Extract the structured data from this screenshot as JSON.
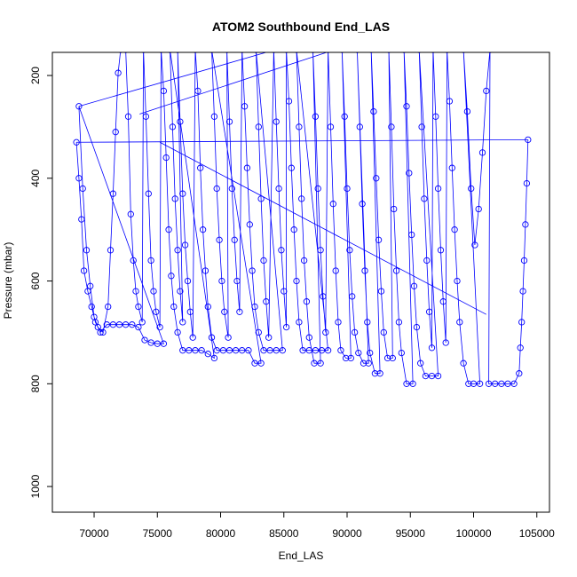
{
  "chart_data": {
    "type": "line",
    "title": "ATOM2 Southbound End_LAS",
    "xlabel": "End_LAS",
    "ylabel": "Pressure (mbar)",
    "xlim": [
      66700,
      106000
    ],
    "ylim": [
      1050,
      155
    ],
    "y_reversed": true,
    "x_ticks": [
      70000,
      75000,
      80000,
      85000,
      90000,
      95000,
      100000,
      105000
    ],
    "x_tick_labels": [
      "70000",
      "75000",
      "80000",
      "85000",
      "90000",
      "95000",
      "100000",
      "105000"
    ],
    "y_ticks": [
      200,
      400,
      600,
      800,
      1000
    ],
    "y_tick_labels": [
      "200",
      "400",
      "600",
      "800",
      "1000"
    ],
    "series_color": "#0000ff",
    "marker": "open-circle",
    "grid": false,
    "legend": "none",
    "series": [
      {
        "points": [
          [
            68600,
            330
          ],
          [
            68800,
            400
          ],
          [
            69000,
            480
          ],
          [
            69200,
            580
          ],
          [
            69500,
            620
          ],
          [
            69800,
            650
          ],
          [
            70100,
            680
          ],
          [
            70500,
            700
          ],
          [
            71000,
            685
          ],
          [
            71500,
            685
          ],
          [
            72000,
            685
          ],
          [
            72500,
            685
          ],
          [
            73000,
            685
          ],
          [
            73500,
            690
          ],
          [
            74000,
            715
          ],
          [
            74500,
            720
          ],
          [
            75000,
            722
          ],
          [
            75500,
            722
          ],
          [
            68800,
            260
          ],
          [
            69100,
            420
          ],
          [
            69400,
            540
          ],
          [
            69700,
            610
          ],
          [
            70000,
            670
          ],
          [
            70300,
            690
          ],
          [
            70700,
            700
          ],
          [
            71100,
            650
          ],
          [
            71300,
            540
          ],
          [
            71500,
            430
          ],
          [
            71700,
            310
          ],
          [
            71900,
            195
          ],
          [
            72100,
            150
          ],
          [
            72500,
            150
          ],
          [
            72700,
            280
          ],
          [
            72900,
            470
          ],
          [
            73100,
            560
          ],
          [
            73300,
            620
          ],
          [
            73500,
            650
          ],
          [
            73800,
            680
          ],
          [
            73900,
            150
          ],
          [
            74100,
            280
          ],
          [
            74300,
            430
          ],
          [
            74500,
            560
          ],
          [
            74700,
            620
          ],
          [
            74900,
            660
          ],
          [
            75200,
            690
          ],
          [
            75300,
            150
          ],
          [
            75500,
            230
          ],
          [
            75700,
            360
          ],
          [
            75900,
            500
          ],
          [
            76100,
            590
          ],
          [
            76300,
            650
          ],
          [
            76600,
            700
          ],
          [
            77000,
            735
          ],
          [
            77500,
            735
          ],
          [
            78000,
            735
          ],
          [
            78500,
            735
          ],
          [
            79000,
            742
          ],
          [
            79500,
            750
          ],
          [
            76000,
            150
          ],
          [
            76200,
            300
          ],
          [
            76400,
            440
          ],
          [
            76600,
            540
          ],
          [
            76800,
            620
          ],
          [
            77000,
            680
          ],
          [
            76600,
            150
          ],
          [
            76800,
            290
          ],
          [
            77000,
            430
          ],
          [
            77200,
            530
          ],
          [
            77400,
            600
          ],
          [
            77600,
            660
          ],
          [
            77800,
            710
          ],
          [
            78000,
            150
          ],
          [
            78200,
            230
          ],
          [
            78400,
            380
          ],
          [
            78600,
            500
          ],
          [
            78800,
            580
          ],
          [
            79000,
            650
          ],
          [
            79300,
            710
          ],
          [
            79700,
            735
          ],
          [
            80200,
            735
          ],
          [
            80700,
            735
          ],
          [
            81200,
            735
          ],
          [
            81700,
            735
          ],
          [
            82200,
            735
          ],
          [
            82700,
            760
          ],
          [
            83200,
            760
          ],
          [
            79300,
            150
          ],
          [
            79500,
            280
          ],
          [
            79700,
            420
          ],
          [
            79900,
            520
          ],
          [
            80100,
            600
          ],
          [
            80300,
            660
          ],
          [
            80600,
            710
          ],
          [
            80500,
            150
          ],
          [
            80700,
            290
          ],
          [
            80900,
            420
          ],
          [
            81100,
            520
          ],
          [
            81300,
            600
          ],
          [
            81500,
            660
          ],
          [
            81700,
            150
          ],
          [
            81900,
            260
          ],
          [
            82100,
            380
          ],
          [
            82300,
            490
          ],
          [
            82500,
            580
          ],
          [
            82700,
            650
          ],
          [
            83000,
            700
          ],
          [
            83400,
            735
          ],
          [
            83900,
            735
          ],
          [
            84400,
            735
          ],
          [
            84900,
            735
          ],
          [
            82800,
            150
          ],
          [
            83000,
            300
          ],
          [
            83200,
            440
          ],
          [
            83400,
            560
          ],
          [
            83600,
            640
          ],
          [
            83800,
            710
          ],
          [
            84200,
            150
          ],
          [
            84400,
            290
          ],
          [
            84600,
            420
          ],
          [
            84800,
            540
          ],
          [
            85000,
            620
          ],
          [
            85200,
            690
          ],
          [
            85200,
            150
          ],
          [
            85400,
            250
          ],
          [
            85600,
            380
          ],
          [
            85800,
            500
          ],
          [
            86000,
            600
          ],
          [
            86200,
            680
          ],
          [
            86500,
            735
          ],
          [
            87000,
            735
          ],
          [
            87500,
            735
          ],
          [
            88000,
            735
          ],
          [
            88500,
            735
          ],
          [
            86000,
            150
          ],
          [
            86200,
            300
          ],
          [
            86400,
            440
          ],
          [
            86600,
            560
          ],
          [
            86800,
            640
          ],
          [
            87000,
            710
          ],
          [
            87400,
            760
          ],
          [
            87900,
            760
          ],
          [
            87300,
            150
          ],
          [
            87500,
            280
          ],
          [
            87700,
            420
          ],
          [
            87900,
            540
          ],
          [
            88100,
            630
          ],
          [
            88300,
            700
          ],
          [
            88500,
            150
          ],
          [
            88700,
            300
          ],
          [
            88900,
            450
          ],
          [
            89100,
            580
          ],
          [
            89300,
            680
          ],
          [
            89500,
            735
          ],
          [
            89900,
            750
          ],
          [
            90300,
            750
          ],
          [
            89600,
            150
          ],
          [
            89800,
            280
          ],
          [
            90000,
            420
          ],
          [
            90200,
            540
          ],
          [
            90400,
            630
          ],
          [
            90600,
            700
          ],
          [
            90900,
            740
          ],
          [
            91300,
            760
          ],
          [
            91700,
            760
          ],
          [
            90800,
            150
          ],
          [
            91000,
            300
          ],
          [
            91200,
            450
          ],
          [
            91400,
            580
          ],
          [
            91600,
            680
          ],
          [
            91800,
            740
          ],
          [
            92200,
            780
          ],
          [
            92600,
            780
          ],
          [
            91900,
            150
          ],
          [
            92100,
            270
          ],
          [
            92300,
            400
          ],
          [
            92500,
            520
          ],
          [
            92700,
            620
          ],
          [
            92900,
            700
          ],
          [
            93200,
            750
          ],
          [
            93600,
            750
          ],
          [
            93300,
            150
          ],
          [
            93500,
            300
          ],
          [
            93700,
            460
          ],
          [
            93900,
            580
          ],
          [
            94100,
            680
          ],
          [
            94300,
            740
          ],
          [
            94700,
            800
          ],
          [
            95200,
            800
          ],
          [
            94500,
            150
          ],
          [
            94700,
            260
          ],
          [
            94900,
            390
          ],
          [
            95100,
            510
          ],
          [
            95300,
            610
          ],
          [
            95500,
            690
          ],
          [
            95800,
            760
          ],
          [
            96200,
            785
          ],
          [
            96700,
            785
          ],
          [
            97200,
            785
          ],
          [
            95700,
            150
          ],
          [
            95900,
            300
          ],
          [
            96100,
            440
          ],
          [
            96300,
            560
          ],
          [
            96500,
            660
          ],
          [
            96700,
            730
          ],
          [
            96800,
            150
          ],
          [
            97000,
            280
          ],
          [
            97200,
            420
          ],
          [
            97400,
            540
          ],
          [
            97600,
            640
          ],
          [
            97800,
            720
          ],
          [
            97900,
            150
          ],
          [
            98100,
            250
          ],
          [
            98300,
            380
          ],
          [
            98500,
            500
          ],
          [
            98700,
            600
          ],
          [
            98900,
            680
          ],
          [
            99200,
            760
          ],
          [
            99600,
            800
          ],
          [
            100000,
            800
          ],
          [
            100500,
            800
          ],
          [
            99200,
            150
          ],
          [
            99500,
            270
          ],
          [
            99800,
            420
          ],
          [
            100100,
            530
          ],
          [
            100400,
            460
          ],
          [
            100700,
            350
          ],
          [
            101000,
            230
          ],
          [
            101300,
            150
          ],
          [
            101200,
            800
          ],
          [
            101700,
            800
          ],
          [
            102200,
            800
          ],
          [
            102700,
            800
          ],
          [
            103200,
            800
          ],
          [
            103600,
            780
          ],
          [
            103700,
            730
          ],
          [
            103800,
            680
          ],
          [
            103900,
            620
          ],
          [
            104000,
            560
          ],
          [
            104100,
            490
          ],
          [
            104200,
            410
          ],
          [
            104300,
            325
          ]
        ]
      }
    ],
    "connectors": [
      [
        [
          68600,
          330
        ],
        [
          104300,
          325
        ]
      ],
      [
        [
          68800,
          260
        ],
        [
          84300,
          150
        ]
      ],
      [
        [
          73600,
          275
        ],
        [
          89000,
          150
        ]
      ],
      [
        [
          75200,
          330
        ],
        [
          101000,
          665
        ]
      ]
    ]
  }
}
